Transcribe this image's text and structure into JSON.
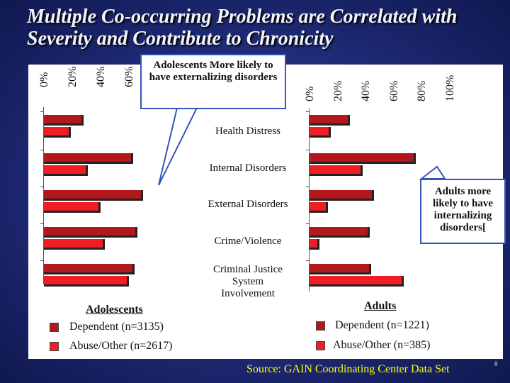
{
  "slide": {
    "title": "Multiple Co-occurring Problems are Correlated with Severity and Contribute to Chronicity",
    "source": "Source: GAIN Coordinating Center Data Set",
    "page_number": "8"
  },
  "callouts": {
    "adolescents": "Adolescents  More likely to have externalizing disorders",
    "adults": "Adults  more likely to have internalizing disorders["
  },
  "legends": {
    "adolescents": {
      "title": "Adolescents",
      "items": [
        "Dependent (n=3135)",
        "Abuse/Other (n=2617)"
      ]
    },
    "adults": {
      "title": "Adults",
      "items": [
        "Dependent (n=1221)",
        "Abuse/Other (n=385)"
      ]
    }
  },
  "colors": {
    "dependent": "#b3191c",
    "abuse_other": "#ee1e24"
  },
  "chart_data": [
    {
      "type": "bar",
      "orientation": "horizontal",
      "panel": "Adolescents",
      "categories": [
        "Health Distress",
        "Internal Disorders",
        "External Disorders",
        "Crime/Violence",
        "Criminal Justice System Involvement"
      ],
      "ticks": [
        "0%",
        "20%",
        "40%",
        "60%"
      ],
      "xlim": [
        0,
        70
      ],
      "series": [
        {
          "name": "Dependent (n=3135)",
          "values": [
            28,
            63,
            70,
            66,
            64
          ]
        },
        {
          "name": "Abuse/Other (n=2617)",
          "values": [
            19,
            31,
            40,
            43,
            60
          ]
        }
      ]
    },
    {
      "type": "bar",
      "orientation": "horizontal",
      "panel": "Adults",
      "categories": [
        "Health Distress",
        "Internal Disorders",
        "External Disorders",
        "Crime/Violence",
        "Criminal Justice System Involvement"
      ],
      "ticks": [
        "0%",
        "20%",
        "40%",
        "60%",
        "80%",
        "100%"
      ],
      "xlim": [
        0,
        100
      ],
      "series": [
        {
          "name": "Dependent (n=1221)",
          "values": [
            29,
            76,
            46,
            43,
            44
          ]
        },
        {
          "name": "Abuse/Other (n=385)",
          "values": [
            15,
            38,
            13,
            7,
            67
          ]
        }
      ]
    }
  ]
}
